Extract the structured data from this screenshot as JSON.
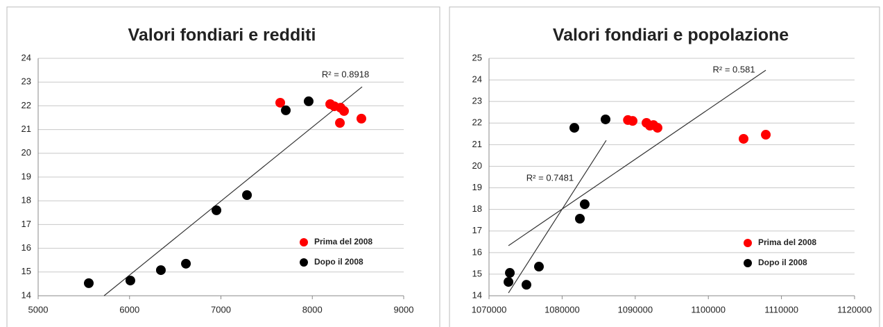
{
  "chart_data": [
    {
      "type": "scatter",
      "title": "Valori fondiari e redditi",
      "xlim": [
        5000,
        9000
      ],
      "xticks": [
        5000,
        6000,
        7000,
        8000,
        9000
      ],
      "ylim": [
        14,
        24
      ],
      "yticks": [
        14,
        15,
        16,
        17,
        18,
        19,
        20,
        21,
        22,
        23,
        24
      ],
      "grid": true,
      "legend": "lower right",
      "series": [
        {
          "name": "Prima del 2008",
          "color": "#ff0000",
          "x": [
            7649,
            8196,
            8241,
            8309,
            8347,
            8302,
            8537
          ],
          "values": [
            22.13,
            22.07,
            21.98,
            21.92,
            21.78,
            21.28,
            21.46
          ]
        },
        {
          "name": "Dopo il 2008",
          "color": "#000000",
          "x": [
            5554,
            6009,
            6343,
            6617,
            6951,
            7285,
            7710,
            7960
          ],
          "values": [
            14.53,
            14.64,
            15.08,
            15.35,
            17.6,
            18.24,
            21.81,
            22.19
          ]
        }
      ],
      "trendlines": [
        {
          "label": "R² = 0.8918",
          "x": [
            5721,
            8545
          ],
          "y": [
            14,
            22.8
          ]
        }
      ]
    },
    {
      "type": "scatter",
      "title": "Valori fondiari e popolazione",
      "xlim": [
        1070000,
        1120000
      ],
      "xticks": [
        1070000,
        1080000,
        1090000,
        1100000,
        1110000,
        1120000
      ],
      "ylim": [
        14,
        25
      ],
      "yticks": [
        14,
        15,
        16,
        17,
        18,
        19,
        20,
        21,
        22,
        23,
        24,
        25
      ],
      "grid": true,
      "legend": "lower right",
      "series": [
        {
          "name": "Prima del 2008",
          "color": "#ff0000",
          "x": [
            1089000,
            1089640,
            1091540,
            1092010,
            1092490,
            1093050,
            1104820,
            1107860
          ],
          "values": [
            22.14,
            22.1,
            22.01,
            21.88,
            21.91,
            21.78,
            21.27,
            21.46
          ]
        },
        {
          "name": "Dopo il 2008",
          "color": "#000000",
          "x": [
            1072660,
            1072850,
            1075120,
            1076830,
            1081670,
            1082430,
            1083090,
            1085940
          ],
          "values": [
            14.64,
            15.06,
            14.51,
            15.35,
            21.78,
            17.57,
            18.24,
            22.17
          ]
        }
      ],
      "trendlines": [
        {
          "label": "R² = 0.581",
          "x": [
            1072660,
            1107860
          ],
          "y": [
            16.32,
            24.45
          ]
        },
        {
          "label": "R² = 0.7481",
          "x": [
            1072660,
            1086030
          ],
          "y": [
            14.13,
            21.2
          ]
        }
      ]
    }
  ]
}
